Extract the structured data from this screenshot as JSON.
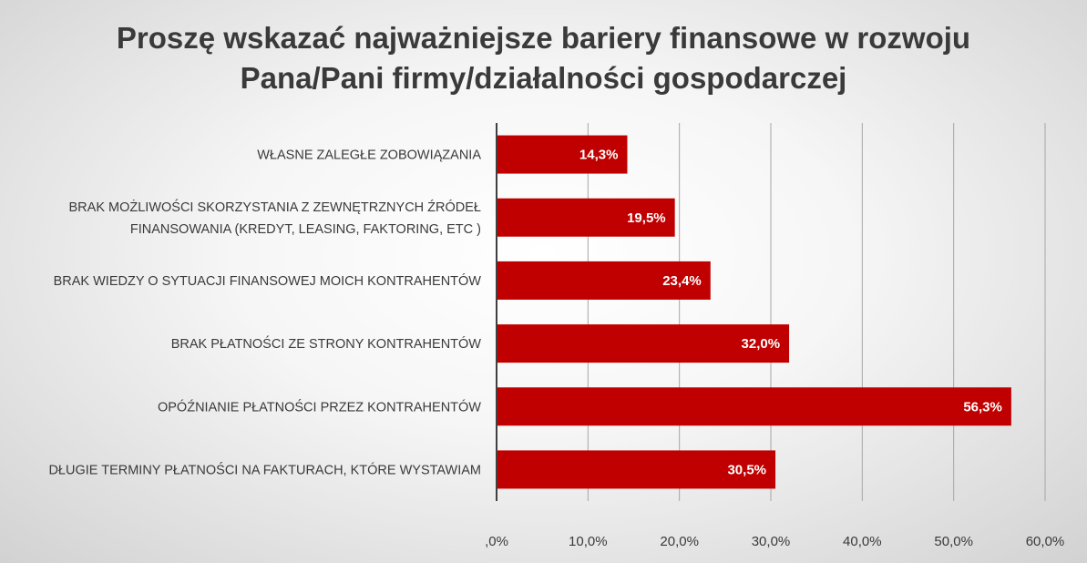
{
  "chart_data": {
    "type": "bar",
    "orientation": "horizontal",
    "title": [
      "Proszę wskazać najważniejsze bariery finansowe w rozwoju",
      "Pana/Pani firmy/działalności gospodarczej"
    ],
    "categories": [
      [
        "WŁASNE ZALEGŁE ZOBOWIĄZANIA"
      ],
      [
        "BRAK MOŻLIWOŚCI SKORZYSTANIA Z ZEWNĘTRZNYCH ŹRÓDEŁ",
        "FINANSOWANIA (KREDYT, LEASING, FAKTORING, ETC )"
      ],
      [
        "BRAK WIEDZY O SYTUACJI FINANSOWEJ MOICH KONTRAHENTÓW"
      ],
      [
        "BRAK PŁATNOŚCI ZE STRONY KONTRAHENTÓW"
      ],
      [
        "OPÓŹNIANIE PŁATNOŚCI PRZEZ KONTRAHENTÓW"
      ],
      [
        "DŁUGIE TERMINY PŁATNOŚCI NA FAKTURACH, KTÓRE WYSTAWIAM"
      ]
    ],
    "values": [
      14.3,
      19.5,
      23.4,
      32.0,
      56.3,
      30.5
    ],
    "data_labels": [
      "14,3%",
      "19,5%",
      "23,4%",
      "32,0%",
      "56,3%",
      "30,5%"
    ],
    "x_ticks": [
      ",0%",
      "10,0%",
      "20,0%",
      "30,0%",
      "40,0%",
      "50,0%",
      "60,0%"
    ],
    "xlim": [
      0,
      60
    ],
    "grid": true,
    "legend": "none",
    "colors": {
      "bar": "#c00000",
      "data_label": "#ffffff",
      "text": "#3a3a3a",
      "grid": "#a6a6a6",
      "axis": "#404040"
    }
  }
}
